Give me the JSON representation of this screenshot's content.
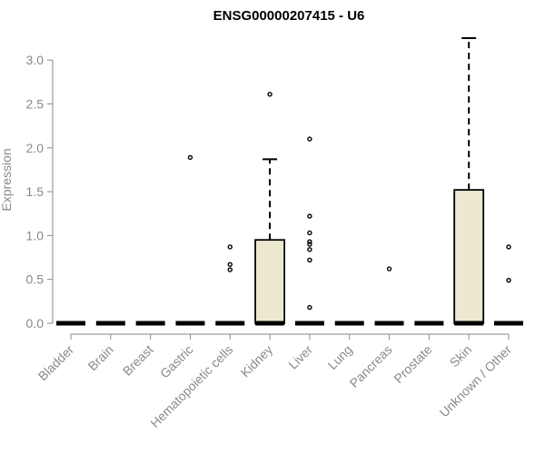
{
  "chart_data": {
    "type": "box",
    "title": "ENSG00000207415 - U6",
    "xlabel": "",
    "ylabel": "Expression",
    "ylim": [
      0,
      3.25
    ],
    "yticks": [
      0.0,
      0.5,
      1.0,
      1.5,
      2.0,
      2.5,
      3.0
    ],
    "ytick_labels": [
      "0.0",
      "0.5",
      "1.0",
      "1.5",
      "2.0",
      "2.5",
      "3.0"
    ],
    "box_fill": "#ede8d0",
    "categories": [
      "Bladder",
      "Brain",
      "Breast",
      "Gastric",
      "Hematopoietic cells",
      "Kidney",
      "Liver",
      "Lung",
      "Pancreas",
      "Prostate",
      "Skin",
      "Unknown / Other"
    ],
    "boxes": [
      {
        "category": "Bladder",
        "q1": 0,
        "median": 0,
        "q3": 0,
        "whisker_low": 0,
        "whisker_high": 0,
        "outliers": []
      },
      {
        "category": "Brain",
        "q1": 0,
        "median": 0,
        "q3": 0,
        "whisker_low": 0,
        "whisker_high": 0,
        "outliers": []
      },
      {
        "category": "Breast",
        "q1": 0,
        "median": 0,
        "q3": 0,
        "whisker_low": 0,
        "whisker_high": 0,
        "outliers": []
      },
      {
        "category": "Gastric",
        "q1": 0,
        "median": 0,
        "q3": 0,
        "whisker_low": 0,
        "whisker_high": 0,
        "outliers": [
          1.89
        ]
      },
      {
        "category": "Hematopoietic cells",
        "q1": 0,
        "median": 0,
        "q3": 0,
        "whisker_low": 0,
        "whisker_high": 0,
        "outliers": [
          0.87,
          0.67,
          0.61
        ]
      },
      {
        "category": "Kidney",
        "q1": 0,
        "median": 0,
        "q3": 0.95,
        "whisker_low": 0,
        "whisker_high": 1.87,
        "outliers": [
          2.61
        ]
      },
      {
        "category": "Liver",
        "q1": 0,
        "median": 0,
        "q3": 0,
        "whisker_low": 0,
        "whisker_high": 0,
        "outliers": [
          2.1,
          1.22,
          1.03,
          0.93,
          0.9,
          0.84,
          0.72,
          0.18
        ]
      },
      {
        "category": "Lung",
        "q1": 0,
        "median": 0,
        "q3": 0,
        "whisker_low": 0,
        "whisker_high": 0,
        "outliers": []
      },
      {
        "category": "Pancreas",
        "q1": 0,
        "median": 0,
        "q3": 0,
        "whisker_low": 0,
        "whisker_high": 0,
        "outliers": [
          0.62
        ]
      },
      {
        "category": "Prostate",
        "q1": 0,
        "median": 0,
        "q3": 0,
        "whisker_low": 0,
        "whisker_high": 0,
        "outliers": []
      },
      {
        "category": "Skin",
        "q1": 0,
        "median": 0,
        "q3": 1.52,
        "whisker_low": 0,
        "whisker_high": 3.25,
        "outliers": []
      },
      {
        "category": "Unknown / Other",
        "q1": 0,
        "median": 0,
        "q3": 0,
        "whisker_low": 0,
        "whisker_high": 0,
        "outliers": [
          0.87,
          0.49
        ]
      }
    ]
  }
}
